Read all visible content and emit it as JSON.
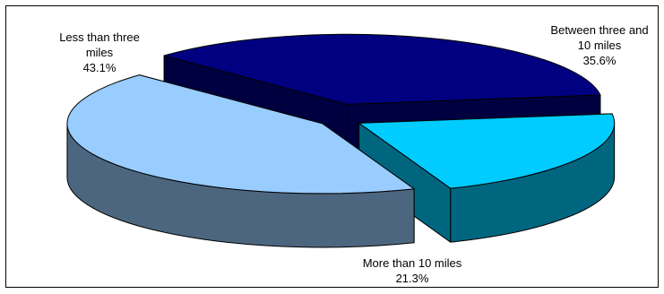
{
  "chart_data": {
    "type": "pie",
    "variant": "3d-exploded",
    "title": "",
    "slices": [
      {
        "label_lines": [
          "Less than three",
          "miles"
        ],
        "value": 43.1,
        "value_label": "43.1%",
        "top_color": "#99CCFF",
        "side_color": "#4D6680"
      },
      {
        "label_lines": [
          "Between three and",
          "10 miles"
        ],
        "value": 35.6,
        "value_label": "35.6%",
        "top_color": "#000080",
        "side_color": "#000040"
      },
      {
        "label_lines": [
          "More than 10 miles"
        ],
        "value": 21.3,
        "value_label": "21.3%",
        "top_color": "#00CCFF",
        "side_color": "#006680"
      }
    ],
    "legend": "none",
    "border": true
  }
}
